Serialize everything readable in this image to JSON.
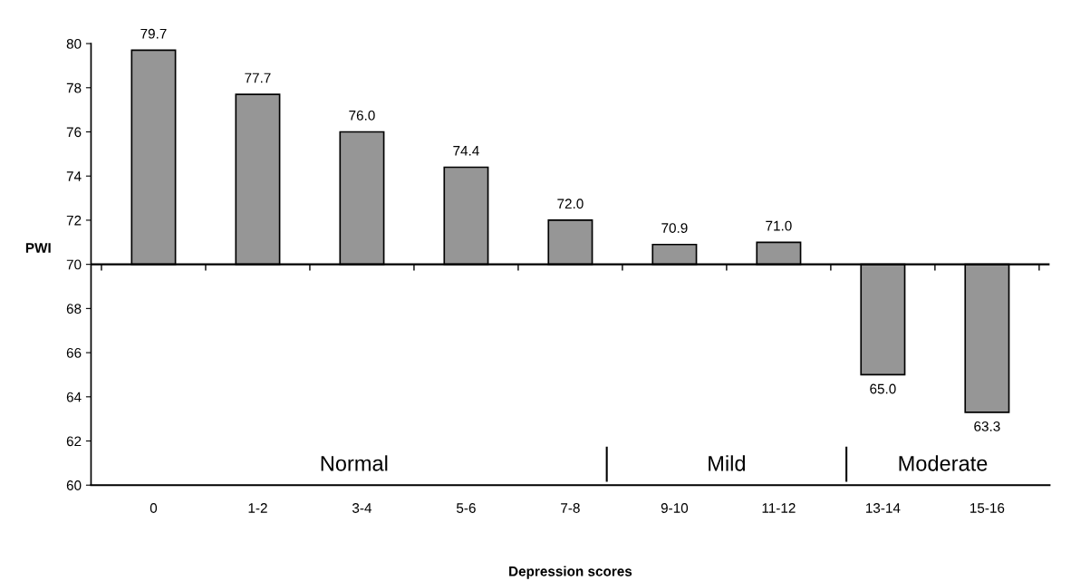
{
  "chart_data": {
    "type": "bar",
    "xlabel": "Depression scores",
    "ylabel": "PWI",
    "categories": [
      "0",
      "1-2",
      "3-4",
      "5-6",
      "7-8",
      "9-10",
      "11-12",
      "13-14",
      "15-16"
    ],
    "values": [
      9.7,
      7.7,
      6.0,
      4.4,
      2.0,
      0.9,
      1.0,
      -5.0,
      -6.7
    ],
    "base": [
      70,
      70,
      70,
      70,
      70,
      70,
      70,
      70,
      70
    ],
    "value_labels": [
      "79.7",
      "77.7",
      "76.0",
      "74.4",
      "72.0",
      "70.9",
      "71.0",
      "65.0",
      "63.3"
    ],
    "color": "#969696",
    "ylim": [
      60,
      80
    ],
    "yticks": [
      60,
      62,
      64,
      66,
      68,
      70,
      72,
      74,
      76,
      78,
      80
    ],
    "ref_lines": [
      {
        "axis": "y",
        "value": 70,
        "color": "#000000"
      }
    ],
    "annotations": [
      "Normal",
      "Mild",
      "Moderate"
    ],
    "grid": false,
    "legend": false
  }
}
